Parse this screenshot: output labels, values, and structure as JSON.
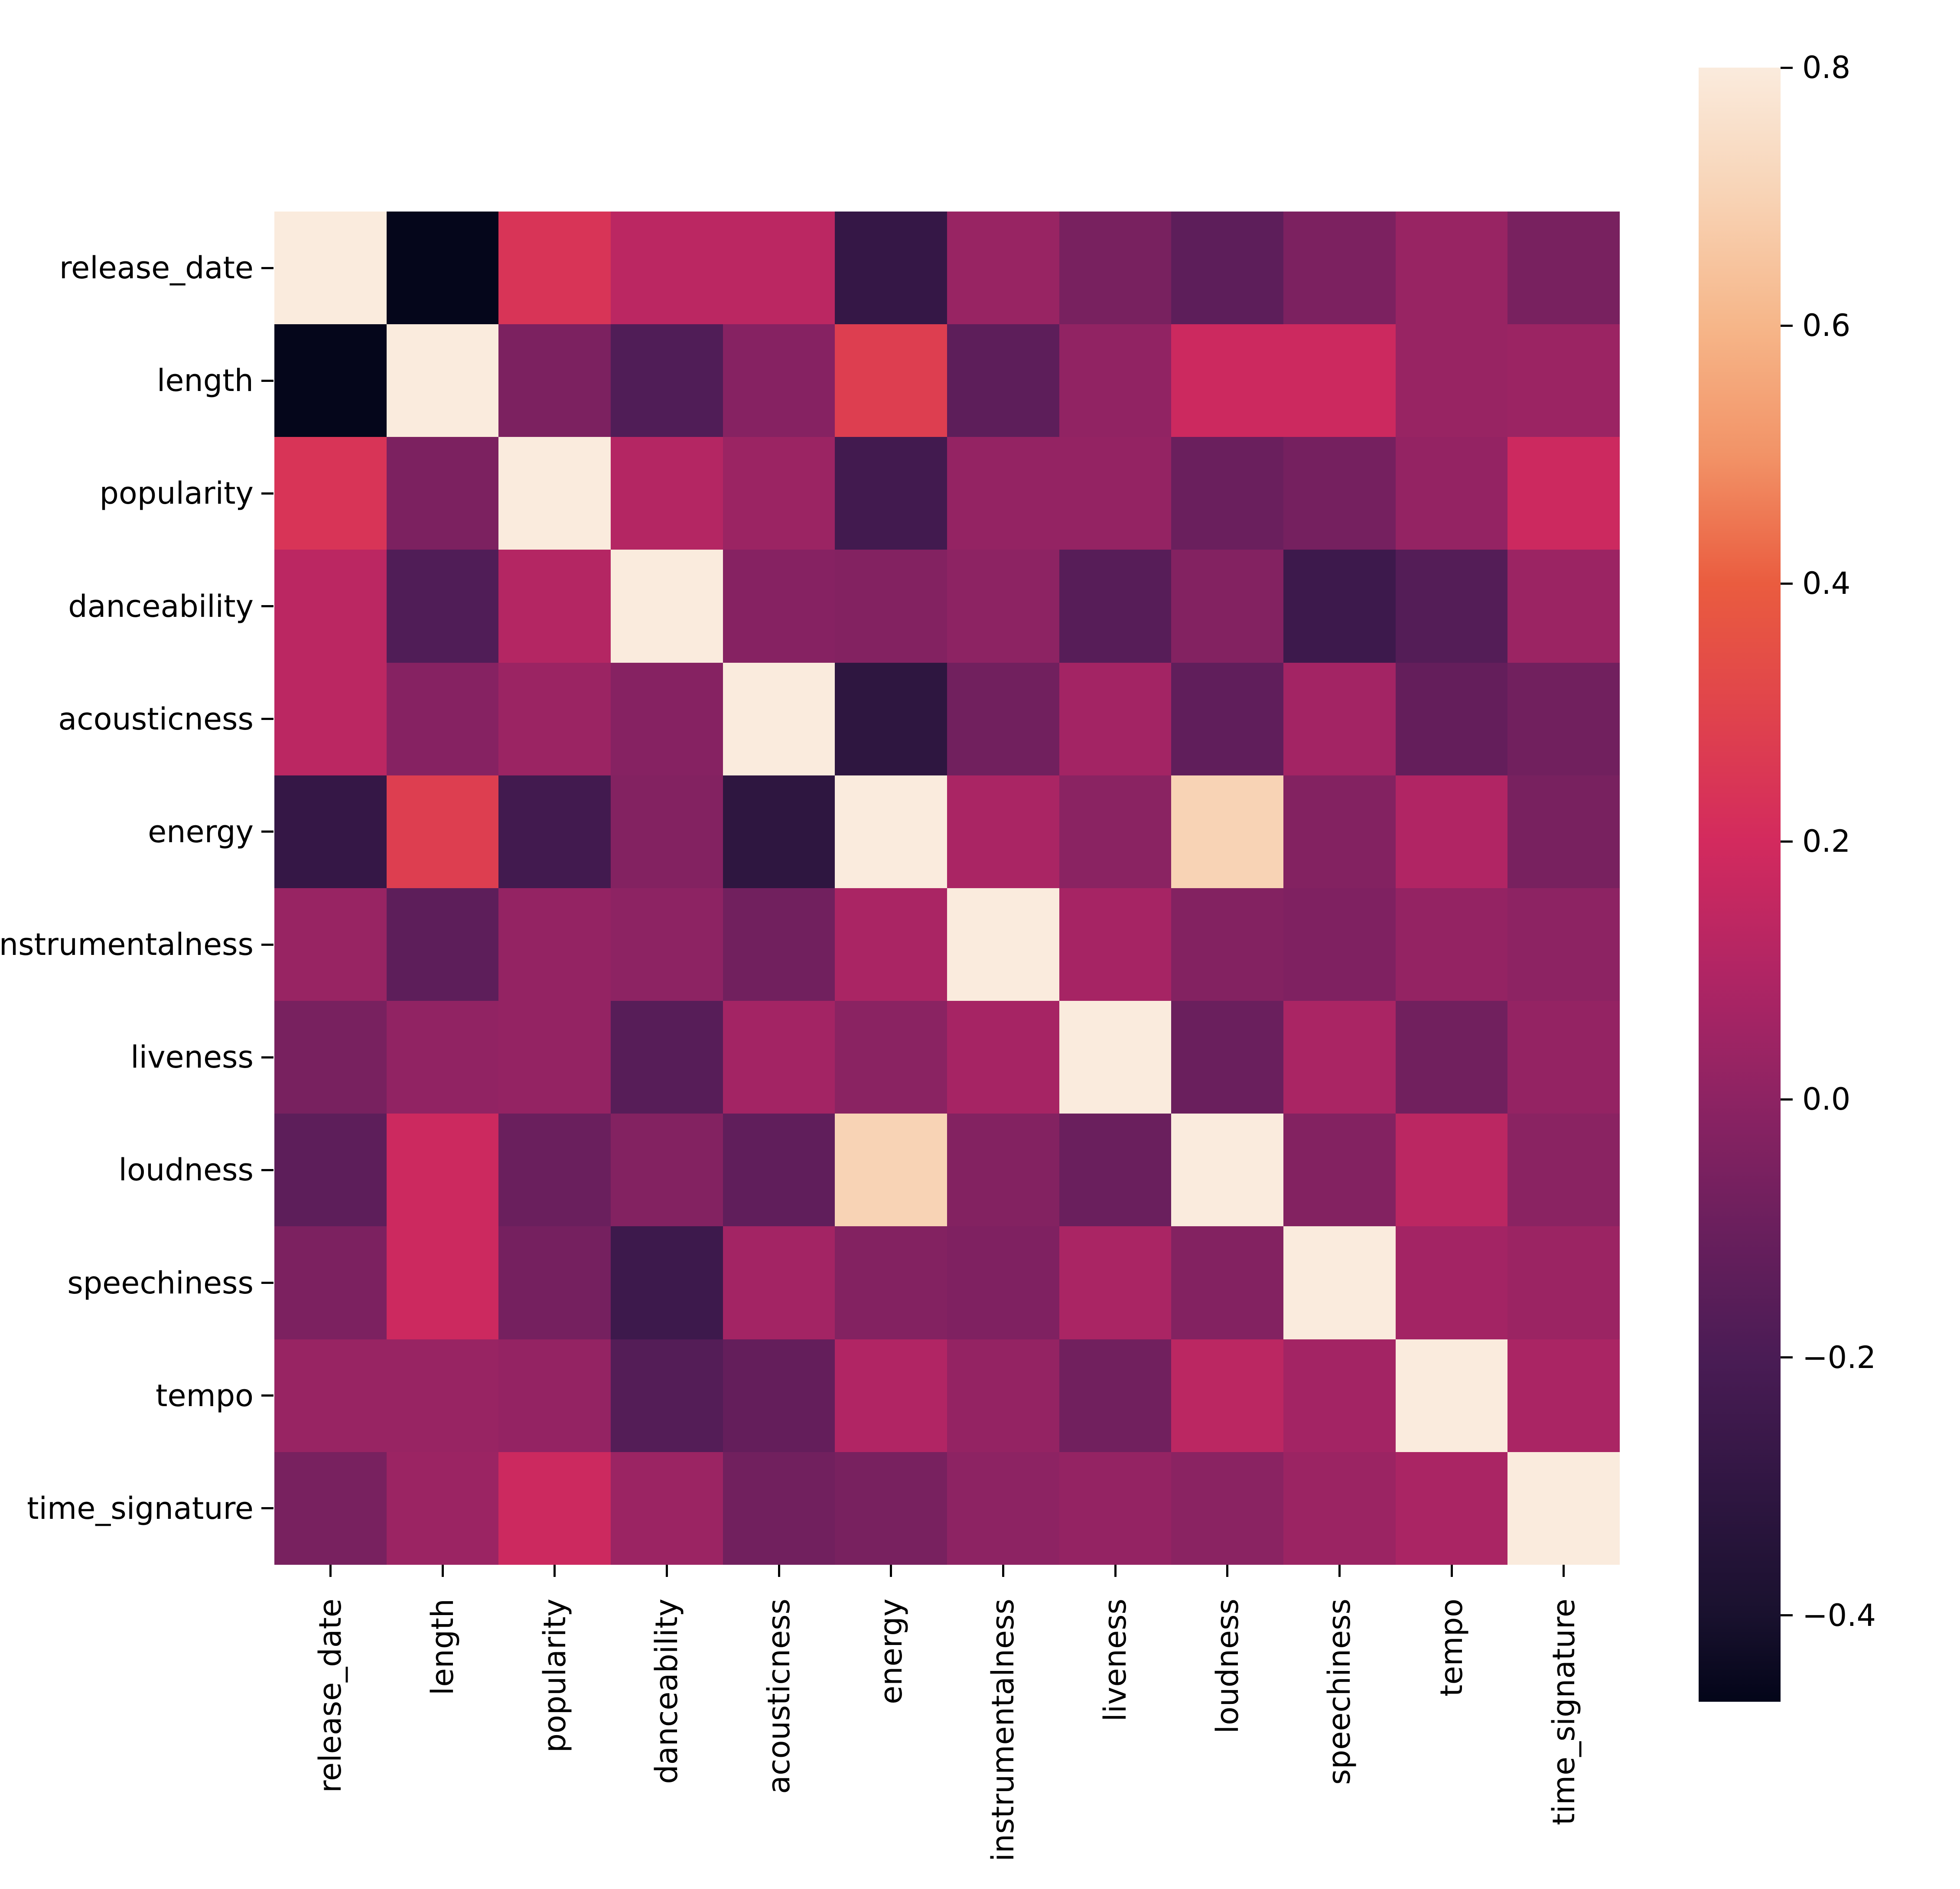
{
  "chart_data": {
    "type": "heatmap",
    "title": "",
    "xlabel": "",
    "ylabel": "",
    "grid": false,
    "legend": "colorbar-right",
    "variables": [
      "release_date",
      "length",
      "popularity",
      "danceability",
      "acousticness",
      "energy",
      "instrumentalness",
      "liveness",
      "loudness",
      "speechiness",
      "tempo",
      "time_signature"
    ],
    "x_tick_labels": [
      "release_date",
      "length",
      "popularity",
      "danceability",
      "acousticness",
      "energy",
      "instrumentalness",
      "liveness",
      "loudness",
      "speechiness",
      "tempo",
      "time_signature"
    ],
    "y_tick_labels": [
      "release_date",
      "length",
      "popularity",
      "danceability",
      "acousticness",
      "energy",
      "instrumentalness",
      "liveness",
      "loudness",
      "speechiness",
      "tempo",
      "time_signature"
    ],
    "matrix": [
      [
        1.0,
        -0.46,
        0.24,
        0.13,
        0.13,
        -0.28,
        0.03,
        -0.06,
        -0.14,
        -0.05,
        0.03,
        -0.06
      ],
      [
        -0.46,
        1.0,
        -0.05,
        -0.18,
        -0.02,
        0.28,
        -0.14,
        0.01,
        0.18,
        0.18,
        0.03,
        0.04
      ],
      [
        0.24,
        -0.05,
        1.0,
        0.11,
        0.04,
        -0.23,
        0.02,
        0.02,
        -0.1,
        -0.07,
        0.02,
        0.18
      ],
      [
        0.13,
        -0.18,
        0.11,
        1.0,
        -0.02,
        -0.03,
        0.0,
        -0.16,
        -0.03,
        -0.25,
        -0.17,
        0.04
      ],
      [
        0.13,
        -0.02,
        0.04,
        -0.02,
        1.0,
        -0.31,
        -0.08,
        0.06,
        -0.13,
        0.06,
        -0.12,
        -0.08
      ],
      [
        -0.28,
        0.28,
        -0.23,
        -0.03,
        -0.31,
        1.0,
        0.08,
        -0.01,
        0.7,
        -0.03,
        0.1,
        -0.06
      ],
      [
        0.03,
        -0.14,
        0.02,
        0.0,
        -0.08,
        0.08,
        1.0,
        0.07,
        -0.03,
        -0.04,
        0.02,
        0.0
      ],
      [
        -0.06,
        0.01,
        0.02,
        -0.16,
        0.06,
        -0.01,
        0.07,
        1.0,
        -0.1,
        0.08,
        -0.08,
        0.02
      ],
      [
        -0.14,
        0.18,
        -0.1,
        -0.03,
        -0.13,
        0.7,
        -0.03,
        -0.1,
        1.0,
        -0.03,
        0.13,
        -0.01
      ],
      [
        -0.05,
        0.18,
        -0.07,
        -0.25,
        0.06,
        -0.03,
        -0.04,
        0.08,
        -0.03,
        1.0,
        0.06,
        0.04
      ],
      [
        0.03,
        0.03,
        0.02,
        -0.17,
        -0.12,
        0.1,
        0.02,
        -0.08,
        0.13,
        0.06,
        1.0,
        0.08
      ],
      [
        -0.06,
        0.04,
        0.18,
        0.04,
        -0.08,
        -0.06,
        0.0,
        0.02,
        -0.01,
        0.04,
        0.08,
        1.0
      ]
    ],
    "color_scale": {
      "colormap": "rocket",
      "vmin": -0.467,
      "vmax": 0.8,
      "stops": [
        {
          "value": -0.467,
          "color": "#030519"
        },
        {
          "value": -0.4,
          "color": "#19112E"
        },
        {
          "value": -0.3,
          "color": "#301642"
        },
        {
          "value": -0.2,
          "color": "#4A1C55"
        },
        {
          "value": -0.1,
          "color": "#6A1F5D"
        },
        {
          "value": 0.0,
          "color": "#8D2363"
        },
        {
          "value": 0.1,
          "color": "#B12564"
        },
        {
          "value": 0.2,
          "color": "#D32A5E"
        },
        {
          "value": 0.3,
          "color": "#E0434C"
        },
        {
          "value": 0.4,
          "color": "#EA5C3F"
        },
        {
          "value": 0.5,
          "color": "#F29367"
        },
        {
          "value": 0.6,
          "color": "#F6B689"
        },
        {
          "value": 0.7,
          "color": "#F8D3B5"
        },
        {
          "value": 0.8,
          "color": "#FAEBDD"
        }
      ],
      "colorbar_ticks": [
        {
          "value": 0.8,
          "label": "0.8"
        },
        {
          "value": 0.6,
          "label": "0.6"
        },
        {
          "value": 0.4,
          "label": "0.4"
        },
        {
          "value": 0.2,
          "label": "0.2"
        },
        {
          "value": 0.0,
          "label": "0.0"
        },
        {
          "value": -0.2,
          "label": "−0.2"
        },
        {
          "value": -0.4,
          "label": "−0.4"
        }
      ]
    }
  }
}
